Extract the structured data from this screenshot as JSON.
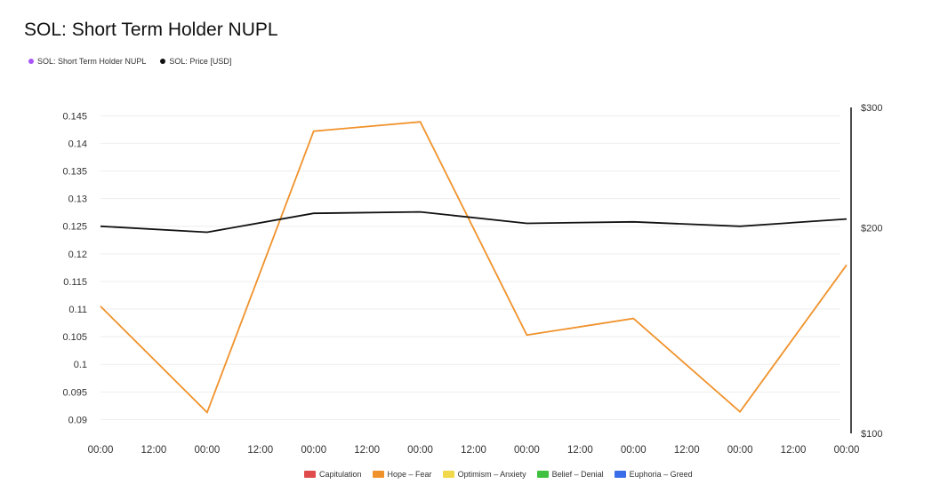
{
  "title": "SOL: Short Term Holder NUPL",
  "legend": [
    {
      "label": "SOL: Short Term Holder NUPL",
      "color": "#a855f7"
    },
    {
      "label": "SOL: Price [USD]",
      "color": "#111111"
    }
  ],
  "zone_legend": [
    {
      "label": "Capitulation",
      "color": "#e04b4b"
    },
    {
      "label": "Hope – Fear",
      "color": "#f0922b"
    },
    {
      "label": "Optimism – Anxiety",
      "color": "#f0d84a"
    },
    {
      "label": "Belief – Denial",
      "color": "#3fc03f"
    },
    {
      "label": "Euphoria – Greed",
      "color": "#3a6ee8"
    }
  ],
  "chart_data": {
    "type": "line",
    "title": "SOL: Short Term Holder NUPL",
    "x_ticks": [
      "00:00",
      "12:00",
      "00:00",
      "12:00",
      "00:00",
      "12:00",
      "00:00",
      "12:00",
      "00:00",
      "12:00",
      "00:00",
      "12:00",
      "00:00",
      "12:00",
      "00:00"
    ],
    "left_axis": {
      "ylim": [
        0.0875,
        0.1465
      ],
      "ticks": [
        0.09,
        0.095,
        0.1,
        0.105,
        0.11,
        0.115,
        0.12,
        0.125,
        0.13,
        0.135,
        0.14,
        0.145
      ],
      "tick_labels": [
        "0.09",
        "0.095",
        "0.1",
        "0.105",
        "0.11",
        "0.115",
        "0.12",
        "0.125",
        "0.13",
        "0.135",
        "0.14",
        "0.145"
      ]
    },
    "right_axis": {
      "scale": "log",
      "ylim": [
        100,
        300
      ],
      "ticks": [
        100,
        200,
        300
      ],
      "tick_labels": [
        "$100",
        "$200",
        "$300"
      ]
    },
    "grid": true,
    "series": [
      {
        "name": "SOL: Short Term Holder NUPL",
        "axis": "left",
        "color": "#f0922b",
        "x": [
          0,
          2,
          4,
          6,
          8,
          10,
          12,
          14
        ],
        "values": [
          0.1105,
          0.0913,
          0.1422,
          0.1439,
          0.1053,
          0.1083,
          0.0914,
          0.118
        ]
      },
      {
        "name": "SOL: Price [USD]",
        "axis": "right",
        "color": "#111111",
        "x": [
          0,
          2,
          4,
          6,
          8,
          10,
          12,
          14
        ],
        "values": [
          201,
          197,
          210,
          211,
          203,
          204,
          201,
          206
        ]
      }
    ]
  }
}
